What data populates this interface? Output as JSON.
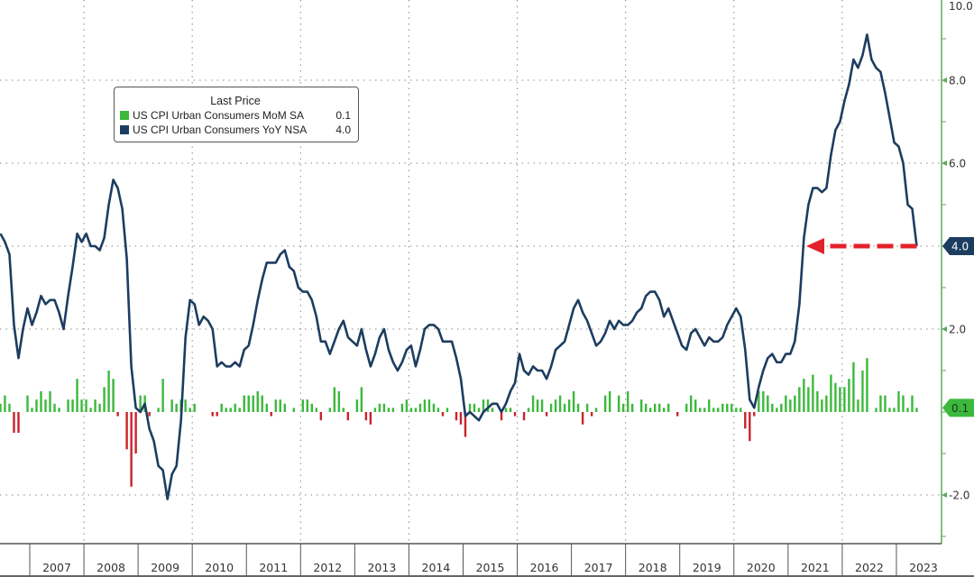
{
  "legend": {
    "title": "Last Price",
    "items": [
      {
        "name": "US CPI Urban Consumers MoM SA",
        "value": "0.1",
        "color": "#3cb83c"
      },
      {
        "name": "US CPI Urban Consumers YoY NSA",
        "value": "4.0",
        "color": "#1d3d60"
      }
    ]
  },
  "chart_data": {
    "type": "line+bar",
    "ylim": [
      -3.2,
      10
    ],
    "y_ticks": [
      "10.0",
      "8.0",
      "6.0",
      "4.0",
      "2.0",
      "-2.0"
    ],
    "y_tick_values": [
      10,
      8,
      6,
      4,
      2,
      -2
    ],
    "x_tick_labels": [
      "2007",
      "2008",
      "2009",
      "2010",
      "2011",
      "2012",
      "2013",
      "2014",
      "2015",
      "2016",
      "2017",
      "2018",
      "2019",
      "2020",
      "2021",
      "2022",
      "2023"
    ],
    "grid": "dotted",
    "legend_placement": "top-left",
    "last_value_labels": {
      "yoy": "4.0",
      "mom": "0.1"
    },
    "annotation": "red dashed arrow pointing left at 4.0",
    "colors": {
      "yoy": "#1d3d60",
      "mom_pos": "#3cb83c",
      "mom_neg": "#c8232a",
      "arrow": "#e3212a",
      "axis": "#5aab5a"
    },
    "x_first": "2006-06",
    "x_last": "2023-05",
    "frequency": "monthly",
    "series": [
      {
        "name": "US CPI Urban Consumers YoY NSA",
        "type": "line",
        "values": [
          4.3,
          4.1,
          3.8,
          2.1,
          1.3,
          2.0,
          2.5,
          2.1,
          2.4,
          2.8,
          2.6,
          2.7,
          2.7,
          2.4,
          2.0,
          2.8,
          3.5,
          4.3,
          4.1,
          4.3,
          4.0,
          4.0,
          3.9,
          4.2,
          5.0,
          5.6,
          5.4,
          4.9,
          3.7,
          1.1,
          0.1,
          0.0,
          0.2,
          -0.4,
          -0.7,
          -1.3,
          -1.4,
          -2.1,
          -1.5,
          -1.3,
          -0.2,
          1.8,
          2.7,
          2.6,
          2.1,
          2.3,
          2.2,
          2.0,
          1.1,
          1.2,
          1.1,
          1.1,
          1.2,
          1.1,
          1.5,
          1.6,
          2.1,
          2.7,
          3.2,
          3.6,
          3.6,
          3.6,
          3.8,
          3.9,
          3.5,
          3.4,
          3.0,
          2.9,
          2.9,
          2.7,
          2.3,
          1.7,
          1.7,
          1.4,
          1.7,
          2.0,
          2.2,
          1.8,
          1.7,
          1.6,
          2.0,
          1.5,
          1.1,
          1.4,
          1.8,
          2.0,
          1.5,
          1.2,
          1.0,
          1.2,
          1.5,
          1.6,
          1.1,
          1.5,
          2.0,
          2.1,
          2.1,
          2.0,
          1.7,
          1.7,
          1.7,
          1.3,
          0.8,
          -0.1,
          0.0,
          -0.1,
          -0.2,
          0.0,
          0.1,
          0.2,
          0.2,
          0.0,
          0.2,
          0.5,
          0.7,
          1.4,
          1.0,
          0.9,
          1.1,
          1.0,
          1.0,
          0.8,
          1.1,
          1.5,
          1.6,
          1.7,
          2.1,
          2.5,
          2.7,
          2.4,
          2.2,
          1.9,
          1.6,
          1.7,
          1.9,
          2.2,
          2.0,
          2.2,
          2.1,
          2.1,
          2.2,
          2.4,
          2.5,
          2.8,
          2.9,
          2.9,
          2.7,
          2.3,
          2.5,
          2.2,
          1.9,
          1.6,
          1.5,
          1.9,
          2.0,
          1.8,
          1.6,
          1.8,
          1.7,
          1.7,
          1.8,
          2.1,
          2.3,
          2.5,
          2.3,
          1.5,
          0.3,
          0.1,
          0.6,
          1.0,
          1.3,
          1.4,
          1.2,
          1.2,
          1.4,
          1.4,
          1.7,
          2.6,
          4.2,
          5.0,
          5.4,
          5.4,
          5.3,
          5.4,
          6.2,
          6.8,
          7.0,
          7.5,
          7.9,
          8.5,
          8.3,
          8.6,
          9.1,
          8.5,
          8.3,
          8.2,
          7.7,
          7.1,
          6.5,
          6.4,
          6.0,
          5.0,
          4.9,
          4.0
        ]
      },
      {
        "name": "US CPI Urban Consumers MoM SA",
        "type": "bar",
        "values": [
          0.2,
          0.4,
          0.2,
          -0.5,
          -0.5,
          0.0,
          0.4,
          0.1,
          0.3,
          0.5,
          0.3,
          0.5,
          0.2,
          0.1,
          0.0,
          0.3,
          0.3,
          0.8,
          0.3,
          0.3,
          0.1,
          0.3,
          0.2,
          0.6,
          1.0,
          0.8,
          -0.1,
          0.0,
          -0.9,
          -1.8,
          -1.0,
          0.4,
          0.4,
          -0.1,
          0.0,
          0.1,
          0.8,
          0.0,
          0.3,
          0.2,
          0.3,
          0.3,
          0.1,
          0.2,
          0.0,
          0.0,
          0.0,
          -0.1,
          -0.1,
          0.2,
          0.1,
          0.1,
          0.2,
          0.1,
          0.4,
          0.4,
          0.4,
          0.5,
          0.4,
          0.2,
          -0.1,
          0.3,
          0.3,
          0.2,
          0.0,
          0.1,
          0.0,
          0.3,
          0.3,
          0.2,
          0.1,
          -0.2,
          0.0,
          0.1,
          0.6,
          0.5,
          0.1,
          -0.2,
          0.0,
          0.3,
          0.6,
          -0.2,
          -0.3,
          0.1,
          0.2,
          0.2,
          0.1,
          0.1,
          0.0,
          0.2,
          0.3,
          0.1,
          0.1,
          0.2,
          0.3,
          0.3,
          0.2,
          0.1,
          -0.1,
          0.1,
          0.0,
          -0.2,
          -0.3,
          -0.6,
          0.2,
          0.2,
          0.1,
          0.3,
          0.3,
          0.1,
          0.0,
          -0.2,
          0.1,
          0.1,
          -0.1,
          0.0,
          -0.2,
          0.1,
          0.4,
          0.3,
          0.3,
          -0.1,
          0.2,
          0.3,
          0.4,
          0.2,
          0.3,
          0.5,
          0.2,
          -0.3,
          0.2,
          -0.1,
          0.1,
          0.0,
          0.4,
          0.5,
          0.0,
          0.4,
          0.2,
          0.5,
          0.2,
          0.0,
          0.3,
          0.2,
          0.1,
          0.2,
          0.2,
          0.1,
          0.2,
          0.0,
          -0.1,
          0.0,
          0.2,
          0.4,
          0.3,
          0.1,
          0.1,
          0.3,
          0.1,
          0.1,
          0.2,
          0.2,
          0.2,
          0.1,
          0.1,
          -0.4,
          -0.7,
          -0.1,
          0.5,
          0.5,
          0.4,
          0.2,
          0.1,
          0.2,
          0.4,
          0.3,
          0.4,
          0.6,
          0.8,
          0.6,
          0.9,
          0.5,
          0.3,
          0.4,
          0.9,
          0.7,
          0.6,
          0.6,
          0.8,
          1.2,
          0.3,
          1.0,
          1.3,
          0.0,
          0.1,
          0.4,
          0.4,
          0.1,
          0.1,
          0.5,
          0.4,
          0.1,
          0.4,
          0.1
        ]
      }
    ]
  }
}
